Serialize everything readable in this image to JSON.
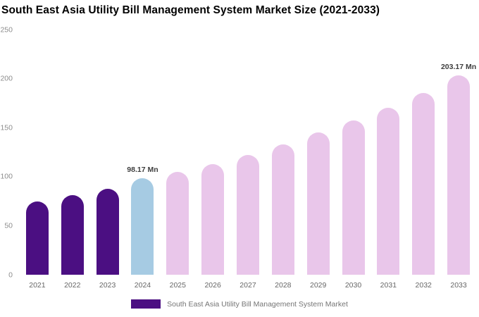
{
  "title": "South East Asia Utility Bill Management System Market Size (2021-2033)",
  "chart_data": {
    "type": "bar",
    "title": "South East Asia Utility Bill Management System Market Size (2021-2033)",
    "categories": [
      "2021",
      "2022",
      "2023",
      "2024",
      "2025",
      "2026",
      "2027",
      "2028",
      "2029",
      "2030",
      "2031",
      "2032",
      "2033"
    ],
    "values": [
      75,
      81,
      88,
      98.17,
      105,
      113,
      122,
      133,
      145,
      157,
      170,
      185,
      203.17
    ],
    "unit": "Mn",
    "ylim": [
      0,
      250
    ],
    "yticks": [
      0,
      50,
      100,
      150,
      200,
      250
    ],
    "grid": false,
    "bar_segments": [
      "historical",
      "historical",
      "historical",
      "current",
      "forecast",
      "forecast",
      "forecast",
      "forecast",
      "forecast",
      "forecast",
      "forecast",
      "forecast",
      "forecast"
    ],
    "colors": {
      "historical": "#4b0f82",
      "current": "#a6cbe3",
      "forecast": "#e9c6ea"
    },
    "annotations": [
      {
        "category": "2024",
        "text": "98.17 Mn"
      },
      {
        "category": "2033",
        "text": "203.17 Mn"
      }
    ],
    "legend_position": "bottom",
    "legend": [
      {
        "label": "South East Asia Utility Bill Management System Market",
        "color": "#4b0f82"
      }
    ]
  }
}
